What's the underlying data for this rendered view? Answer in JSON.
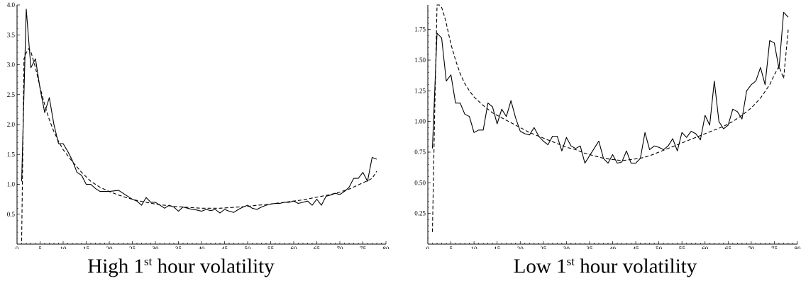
{
  "captions": [
    {
      "pre": "High 1",
      "sup": "st",
      "post": " hour volatility"
    },
    {
      "pre": "Low 1",
      "sup": "st",
      "post": " hour volatility"
    }
  ],
  "chart_data": [
    {
      "type": "line",
      "title": "",
      "xlabel": "",
      "ylabel": "",
      "xlim": [
        0,
        80
      ],
      "ylim": [
        0,
        4.0
      ],
      "x_ticks": [
        0,
        5,
        10,
        15,
        20,
        25,
        30,
        35,
        40,
        45,
        50,
        55,
        60,
        65,
        70,
        75,
        80
      ],
      "y_ticks": [
        0.5,
        1.0,
        1.5,
        2.0,
        2.5,
        3.0,
        3.5,
        4.0
      ],
      "y_tick_decimals": 1,
      "grid": false,
      "series": [
        {
          "style": "solid",
          "x": [
            1,
            2,
            3,
            4,
            5,
            6,
            7,
            8,
            9,
            10,
            11,
            12,
            13,
            14,
            15,
            16,
            17,
            18,
            19,
            20,
            21,
            22,
            23,
            24,
            25,
            26,
            27,
            28,
            29,
            30,
            31,
            32,
            33,
            34,
            35,
            36,
            37,
            38,
            39,
            40,
            41,
            42,
            43,
            44,
            45,
            46,
            47,
            48,
            49,
            50,
            51,
            52,
            53,
            54,
            55,
            56,
            57,
            58,
            59,
            60,
            61,
            62,
            63,
            64,
            65,
            66,
            67,
            68,
            69,
            70,
            71,
            72,
            73,
            74,
            75,
            76,
            77,
            78
          ],
          "values": [
            1.05,
            3.93,
            2.95,
            3.1,
            2.6,
            2.2,
            2.45,
            2.0,
            1.68,
            1.68,
            1.55,
            1.4,
            1.2,
            1.15,
            1.0,
            1.0,
            0.93,
            0.88,
            0.88,
            0.88,
            0.89,
            0.9,
            0.85,
            0.8,
            0.75,
            0.72,
            0.65,
            0.78,
            0.7,
            0.7,
            0.65,
            0.6,
            0.65,
            0.62,
            0.55,
            0.62,
            0.6,
            0.58,
            0.57,
            0.55,
            0.58,
            0.56,
            0.58,
            0.52,
            0.58,
            0.55,
            0.53,
            0.58,
            0.62,
            0.65,
            0.6,
            0.58,
            0.62,
            0.65,
            0.67,
            0.68,
            0.68,
            0.7,
            0.7,
            0.72,
            0.68,
            0.7,
            0.72,
            0.65,
            0.75,
            0.65,
            0.8,
            0.82,
            0.85,
            0.83,
            0.88,
            0.95,
            1.1,
            1.1,
            1.2,
            1.05,
            1.45,
            1.42
          ]
        },
        {
          "style": "dashed",
          "x": [
            1,
            1.5,
            2,
            2.5,
            3,
            4,
            5,
            6,
            7,
            8,
            9,
            10,
            12,
            14,
            16,
            18,
            20,
            22,
            24,
            26,
            28,
            30,
            32,
            34,
            36,
            38,
            40,
            42,
            44,
            46,
            48,
            50,
            52,
            54,
            56,
            58,
            60,
            62,
            64,
            66,
            68,
            70,
            72,
            74,
            76,
            77,
            78
          ],
          "values": [
            0.05,
            3.1,
            3.2,
            3.27,
            3.22,
            2.95,
            2.62,
            2.33,
            2.08,
            1.88,
            1.72,
            1.58,
            1.38,
            1.2,
            1.05,
            0.95,
            0.88,
            0.82,
            0.77,
            0.73,
            0.7,
            0.67,
            0.65,
            0.63,
            0.62,
            0.61,
            0.6,
            0.6,
            0.6,
            0.61,
            0.62,
            0.63,
            0.65,
            0.66,
            0.68,
            0.7,
            0.72,
            0.74,
            0.77,
            0.8,
            0.83,
            0.87,
            0.92,
            0.99,
            1.06,
            1.1,
            1.22
          ]
        }
      ]
    },
    {
      "type": "line",
      "title": "",
      "xlabel": "",
      "ylabel": "",
      "xlim": [
        0,
        80
      ],
      "ylim": [
        0,
        1.95
      ],
      "x_ticks": [
        0,
        5,
        10,
        15,
        20,
        25,
        30,
        35,
        40,
        45,
        50,
        55,
        60,
        65,
        70,
        75,
        80
      ],
      "y_ticks": [
        0.25,
        0.5,
        0.75,
        1.0,
        1.25,
        1.5,
        1.75
      ],
      "y_tick_decimals": 2,
      "grid": false,
      "series": [
        {
          "style": "solid",
          "x": [
            1,
            2,
            3,
            4,
            5,
            6,
            7,
            8,
            9,
            10,
            11,
            12,
            13,
            14,
            15,
            16,
            17,
            18,
            19,
            20,
            21,
            22,
            23,
            24,
            25,
            26,
            27,
            28,
            29,
            30,
            31,
            32,
            33,
            34,
            35,
            36,
            37,
            38,
            39,
            40,
            41,
            42,
            43,
            44,
            45,
            46,
            47,
            48,
            49,
            50,
            51,
            52,
            53,
            54,
            55,
            56,
            57,
            58,
            59,
            60,
            61,
            62,
            63,
            64,
            65,
            66,
            67,
            68,
            69,
            70,
            71,
            72,
            73,
            74,
            75,
            76,
            77,
            78
          ],
          "values": [
            0.78,
            1.72,
            1.68,
            1.33,
            1.38,
            1.15,
            1.15,
            1.06,
            1.04,
            0.91,
            0.93,
            0.93,
            1.15,
            1.12,
            0.98,
            1.1,
            1.04,
            1.17,
            1.03,
            0.92,
            0.9,
            0.89,
            0.95,
            0.88,
            0.84,
            0.81,
            0.88,
            0.88,
            0.76,
            0.87,
            0.8,
            0.78,
            0.8,
            0.66,
            0.72,
            0.78,
            0.84,
            0.7,
            0.66,
            0.73,
            0.66,
            0.67,
            0.76,
            0.66,
            0.66,
            0.7,
            0.91,
            0.77,
            0.8,
            0.79,
            0.77,
            0.8,
            0.86,
            0.76,
            0.91,
            0.87,
            0.92,
            0.9,
            0.85,
            1.05,
            0.97,
            1.33,
            1.0,
            0.94,
            0.97,
            1.1,
            1.08,
            1.02,
            1.25,
            1.3,
            1.33,
            1.44,
            1.3,
            1.66,
            1.64,
            1.43,
            1.89,
            1.85
          ]
        },
        {
          "style": "dashed",
          "x": [
            1,
            1.5,
            2,
            2.5,
            3,
            3.5,
            4,
            5,
            6,
            7,
            8,
            9,
            10,
            12,
            14,
            16,
            18,
            20,
            22,
            24,
            26,
            28,
            30,
            32,
            34,
            36,
            38,
            40,
            42,
            44,
            46,
            48,
            50,
            52,
            54,
            56,
            58,
            60,
            62,
            64,
            66,
            68,
            70,
            72,
            74,
            75,
            76,
            77,
            78
          ],
          "values": [
            0.1,
            1.1,
            1.95,
            1.95,
            1.93,
            1.87,
            1.8,
            1.63,
            1.5,
            1.39,
            1.31,
            1.25,
            1.2,
            1.13,
            1.07,
            1.03,
            0.99,
            0.95,
            0.91,
            0.88,
            0.85,
            0.82,
            0.79,
            0.77,
            0.74,
            0.72,
            0.7,
            0.69,
            0.68,
            0.69,
            0.7,
            0.72,
            0.75,
            0.78,
            0.81,
            0.84,
            0.87,
            0.9,
            0.93,
            0.96,
            1.0,
            1.05,
            1.11,
            1.19,
            1.3,
            1.38,
            1.45,
            1.35,
            1.75
          ]
        }
      ]
    }
  ]
}
